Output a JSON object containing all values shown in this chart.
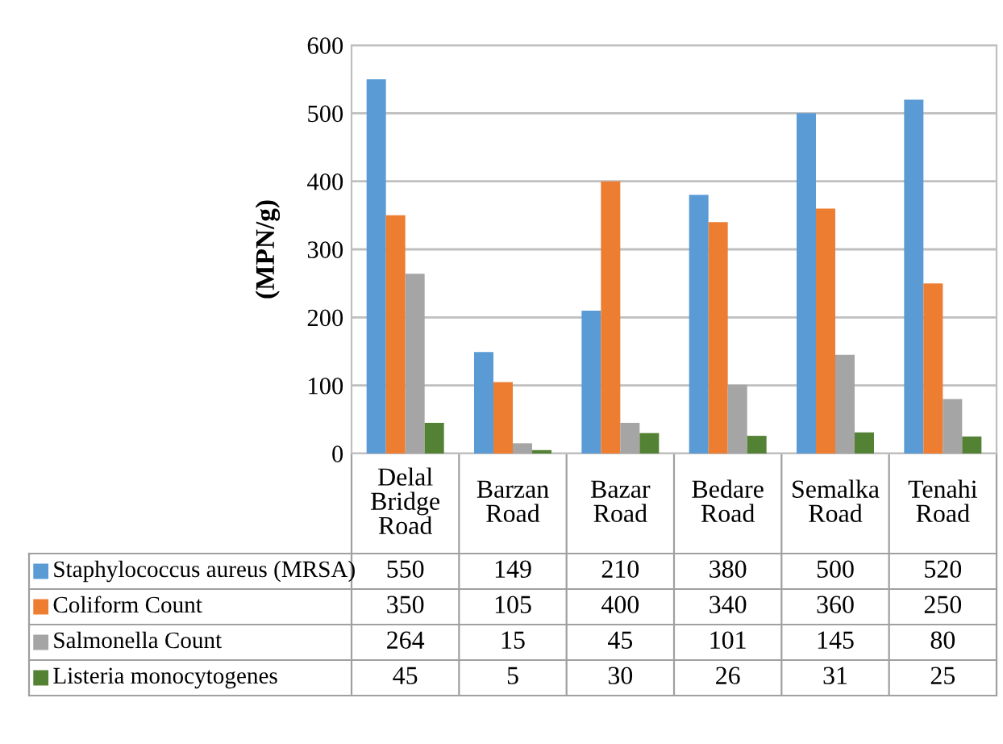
{
  "chart_data": {
    "type": "bar",
    "ylabel": "(MPN/g)",
    "categories": [
      "Delal Bridge Road",
      "Barzan Road",
      "Bazar Road",
      "Bedare Road",
      "Semalka Road",
      "Tenahi Road"
    ],
    "series": [
      {
        "name": "Staphylococcus aureus (MRSA)",
        "color": "#5b9bd5",
        "values": [
          550,
          149,
          210,
          380,
          500,
          520
        ]
      },
      {
        "name": "Coliform Count",
        "color": "#ed7d31",
        "values": [
          350,
          105,
          400,
          340,
          360,
          250
        ]
      },
      {
        "name": "Salmonella Count",
        "color": "#a5a5a5",
        "values": [
          264,
          15,
          45,
          101,
          145,
          80
        ]
      },
      {
        "name": "Listeria monocytogenes",
        "color": "#548235",
        "values": [
          45,
          5,
          30,
          26,
          31,
          25
        ]
      }
    ],
    "ylim": [
      0,
      600
    ],
    "yticks": [
      0,
      100,
      200,
      300,
      400,
      500,
      600
    ],
    "grid": "y",
    "data_labels": true,
    "legend": "bottom"
  }
}
